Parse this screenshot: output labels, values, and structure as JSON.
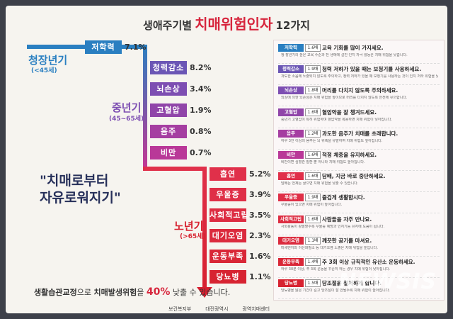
{
  "title": {
    "prefix": "생애주기별",
    "highlight": "치매위험인자",
    "suffix": "12가지"
  },
  "stages": [
    {
      "name": "청장년기",
      "range": "(<45세)"
    },
    {
      "name": "중년기",
      "range": "(45~65세)"
    },
    {
      "name": "노년기",
      "range": "(>65세)"
    }
  ],
  "factors": [
    {
      "name": "저학력",
      "share": "7.1%"
    },
    {
      "name": "청력감소",
      "share": "8.2%"
    },
    {
      "name": "뇌손상",
      "share": "3.4%"
    },
    {
      "name": "고혈압",
      "share": "1.9%"
    },
    {
      "name": "음주",
      "share": "0.8%"
    },
    {
      "name": "비만",
      "share": "0.7%"
    },
    {
      "name": "흡연",
      "share": "5.2%"
    },
    {
      "name": "우울증",
      "share": "3.9%"
    },
    {
      "name": "사회적고립",
      "share": "3.5%"
    },
    {
      "name": "대기오염",
      "share": "2.3%"
    },
    {
      "name": "운동부족",
      "share": "1.6%"
    },
    {
      "name": "당뇨병",
      "share": "1.1%"
    }
  ],
  "slogan": [
    "\"치매로부터",
    "자유로워지기\""
  ],
  "footer": {
    "part1": "생활습관교정",
    "part2": "으로 ",
    "part3": "치매발생위험",
    "part4": "을 ",
    "part5": "40%",
    "part6": " 낮출 수 있습니다."
  },
  "tips": [
    {
      "tag": "저학력",
      "risk": "1.6배",
      "heading": "교육 기회를 많이 가지세요.",
      "detail": "청·장년기의 높은 교육 수준과 전 생애에 걸친 인지 자극 활동은 치매 위험을 낮춥니다."
    },
    {
      "tag": "청력감소",
      "risk": "1.9배",
      "heading": "청력 저하가 있을 때는 보청기를 사용하세요.",
      "detail": "과도한 소음에 노출되지 않도록 주의하고, 청력 저하가 있을 때 보청기를 사용하는 것이 인지 저하 위험을 낮춥니다."
    },
    {
      "tag": "뇌손상",
      "risk": "1.8배",
      "heading": "머리를 다치지 않도록 주의하세요.",
      "detail": "외상에 의한 뇌손상은 치매 위험을 높이므로 머리를 다치지 않도록 안전에 유의합니다."
    },
    {
      "tag": "고혈압",
      "risk": "1.6배",
      "heading": "혈압약을 잘 챙겨드세요.",
      "detail": "중년기 고혈압이 특히 위험하며 혈압약을 복용하면 치매 위험이 낮아집니다."
    },
    {
      "tag": "음주",
      "risk": "1.2배",
      "heading": "과도한 음주가 치매를 초래합니다.",
      "detail": "하루 3잔 이상의 음주는 뇌 위축을 유발하여 치매 위험도 높아집니다."
    },
    {
      "tag": "비만",
      "risk": "1.6배",
      "heading": "적정 체중을 유지하세요.",
      "detail": "비만이면 심혈관 질환 뿐 아니라 치매 위험도 높아집니다."
    },
    {
      "tag": "흡연",
      "risk": "1.6배",
      "heading": "담배, 지금 바로 중단하세요.",
      "detail": "담배는 언제든 끊으면 치매 위험을 낮출 수 있습니다."
    },
    {
      "tag": "우울증",
      "risk": "1.9배",
      "heading": "즐겁게 생활합시다.",
      "detail": "우울증이 있으면 치매 위험이 높아집니다."
    },
    {
      "tag": "사회적고립",
      "risk": "1.6배",
      "heading": "사람들을 자주 만나요.",
      "detail": "사회활동이 활발할수록 우울증 예방과 인지기능 유지에 도움이 됩니다."
    },
    {
      "tag": "대기오염",
      "risk": "1.1배",
      "heading": "깨끗한 공기를 마셔요.",
      "detail": "미세먼지와 이산화질소 등 대기오염 노출은 치매 위험을 높입니다."
    },
    {
      "tag": "운동부족",
      "risk": "1.4배",
      "heading": "주 3회 이상 규칙적인 유산소 운동하세요.",
      "detail": "하루 30분 이상, 주 3회 운동을 꾸준히 하는 경우 치매 위험이 낮아집니다."
    },
    {
      "tag": "당뇨병",
      "risk": "1.5배",
      "heading": "당조절을 철저하게 합니다.",
      "detail": "당뇨병을 앓은 기간이 길고 당조절이 잘 안될수록 치매 위험이 높아집니다."
    }
  ],
  "logos": [
    "보건복지부",
    "대전광역시",
    "광역치매센터"
  ],
  "watermark": "NEWSIS"
}
